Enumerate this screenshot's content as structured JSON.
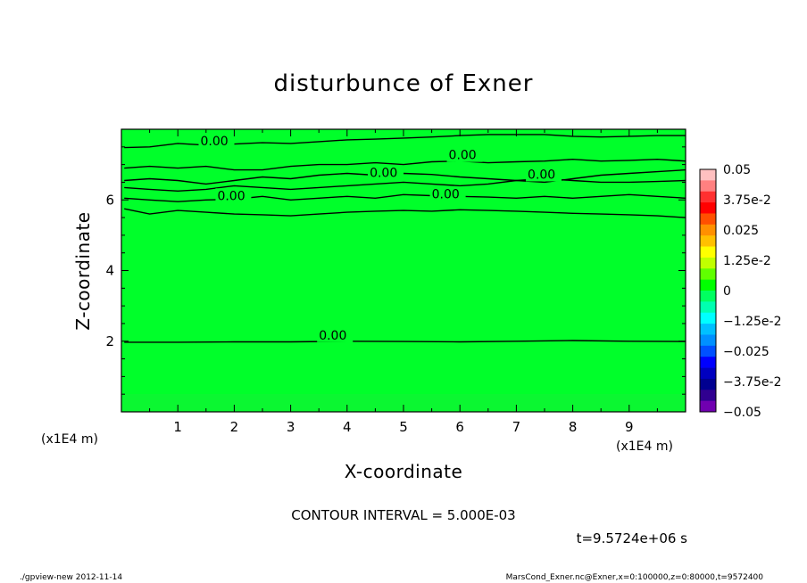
{
  "chart_data": {
    "type": "heatmap",
    "title": "disturbunce of Exner",
    "xlabel": "X-coordinate",
    "ylabel": "Z-coordinate",
    "x_unit": "(x1E4 m)",
    "y_unit": "(x1E4 m)",
    "xlim": [
      0,
      10
    ],
    "ylim": [
      0,
      8
    ],
    "x_ticks": [
      1,
      2,
      3,
      4,
      5,
      6,
      7,
      8,
      9
    ],
    "y_ticks": [
      2,
      4,
      6
    ],
    "field_value": 0,
    "field_color": "#00ff2a",
    "contour_interval_text": "CONTOUR INTERVAL = 5.000E-03",
    "time_text": "t=9.5724e+06 s",
    "contours": [
      {
        "label": "0.00",
        "label_at": [
          1.4,
          7.55
        ],
        "points": [
          [
            0.05,
            7.48
          ],
          [
            0.5,
            7.5
          ],
          [
            1.0,
            7.6
          ],
          [
            1.5,
            7.55
          ],
          [
            2.0,
            7.58
          ],
          [
            2.5,
            7.62
          ],
          [
            3.0,
            7.6
          ],
          [
            3.5,
            7.65
          ],
          [
            4.0,
            7.7
          ],
          [
            4.5,
            7.72
          ],
          [
            5.0,
            7.75
          ],
          [
            5.5,
            7.78
          ],
          [
            6.0,
            7.82
          ],
          [
            6.5,
            7.85
          ],
          [
            7.0,
            7.85
          ],
          [
            7.5,
            7.85
          ],
          [
            8.0,
            7.8
          ],
          [
            8.5,
            7.78
          ],
          [
            9.0,
            7.8
          ],
          [
            9.5,
            7.82
          ],
          [
            10.0,
            7.82
          ]
        ]
      },
      {
        "label": "0.00",
        "label_at": [
          5.8,
          7.15
        ],
        "points": [
          [
            0.05,
            6.9
          ],
          [
            0.5,
            6.95
          ],
          [
            1.0,
            6.9
          ],
          [
            1.5,
            6.95
          ],
          [
            2.0,
            6.85
          ],
          [
            2.5,
            6.85
          ],
          [
            3.0,
            6.95
          ],
          [
            3.5,
            7.0
          ],
          [
            4.0,
            7.0
          ],
          [
            4.5,
            7.05
          ],
          [
            5.0,
            7.0
          ],
          [
            5.5,
            7.08
          ],
          [
            6.0,
            7.1
          ],
          [
            6.5,
            7.05
          ],
          [
            7.0,
            7.08
          ],
          [
            7.5,
            7.1
          ],
          [
            8.0,
            7.15
          ],
          [
            8.5,
            7.1
          ],
          [
            9.0,
            7.12
          ],
          [
            9.5,
            7.15
          ],
          [
            10.0,
            7.1
          ]
        ]
      },
      {
        "label": "0.00",
        "label_at": [
          4.4,
          6.65
        ],
        "points": [
          [
            0.05,
            6.55
          ],
          [
            0.5,
            6.6
          ],
          [
            1.0,
            6.55
          ],
          [
            1.5,
            6.45
          ],
          [
            2.0,
            6.55
          ],
          [
            2.5,
            6.65
          ],
          [
            3.0,
            6.6
          ],
          [
            3.5,
            6.7
          ],
          [
            4.0,
            6.75
          ],
          [
            4.5,
            6.7
          ],
          [
            5.0,
            6.75
          ],
          [
            5.5,
            6.72
          ],
          [
            6.0,
            6.65
          ],
          [
            6.5,
            6.6
          ],
          [
            7.0,
            6.55
          ],
          [
            7.5,
            6.5
          ],
          [
            8.0,
            6.6
          ],
          [
            8.5,
            6.7
          ],
          [
            9.0,
            6.75
          ],
          [
            9.5,
            6.8
          ],
          [
            10.0,
            6.85
          ]
        ]
      },
      {
        "label": "0.00",
        "label_at": [
          7.2,
          6.6
        ],
        "points": [
          [
            0.05,
            6.35
          ],
          [
            0.5,
            6.3
          ],
          [
            1.0,
            6.25
          ],
          [
            1.5,
            6.3
          ],
          [
            2.0,
            6.4
          ],
          [
            2.5,
            6.35
          ],
          [
            3.0,
            6.3
          ],
          [
            3.5,
            6.35
          ],
          [
            4.0,
            6.4
          ],
          [
            4.5,
            6.45
          ],
          [
            5.0,
            6.5
          ],
          [
            5.5,
            6.45
          ],
          [
            6.0,
            6.4
          ],
          [
            6.5,
            6.45
          ],
          [
            7.0,
            6.55
          ],
          [
            7.5,
            6.6
          ],
          [
            8.0,
            6.55
          ],
          [
            8.5,
            6.5
          ],
          [
            9.0,
            6.5
          ],
          [
            9.5,
            6.52
          ],
          [
            10.0,
            6.55
          ]
        ]
      },
      {
        "label": "0.00",
        "label_at": [
          1.7,
          6.0
        ],
        "points": [
          [
            0.05,
            6.05
          ],
          [
            0.5,
            6.0
          ],
          [
            1.0,
            5.95
          ],
          [
            1.5,
            6.0
          ],
          [
            2.0,
            6.02
          ],
          [
            2.5,
            6.1
          ],
          [
            3.0,
            6.0
          ],
          [
            3.5,
            6.05
          ],
          [
            4.0,
            6.1
          ],
          [
            4.5,
            6.05
          ],
          [
            5.0,
            6.15
          ],
          [
            5.5,
            6.12
          ],
          [
            6.0,
            6.1
          ],
          [
            6.5,
            6.08
          ],
          [
            7.0,
            6.05
          ],
          [
            7.5,
            6.1
          ],
          [
            8.0,
            6.05
          ],
          [
            8.5,
            6.1
          ],
          [
            9.0,
            6.15
          ],
          [
            9.5,
            6.1
          ],
          [
            10.0,
            6.05
          ]
        ]
      },
      {
        "label": "0.00",
        "label_at": [
          5.5,
          6.05
        ],
        "points": [
          [
            0.05,
            5.75
          ],
          [
            0.5,
            5.6
          ],
          [
            1.0,
            5.7
          ],
          [
            1.5,
            5.65
          ],
          [
            2.0,
            5.6
          ],
          [
            2.5,
            5.58
          ],
          [
            3.0,
            5.55
          ],
          [
            3.5,
            5.6
          ],
          [
            4.0,
            5.65
          ],
          [
            4.5,
            5.68
          ],
          [
            5.0,
            5.7
          ],
          [
            5.5,
            5.68
          ],
          [
            6.0,
            5.72
          ],
          [
            6.5,
            5.7
          ],
          [
            7.0,
            5.68
          ],
          [
            7.5,
            5.65
          ],
          [
            8.0,
            5.62
          ],
          [
            8.5,
            5.6
          ],
          [
            9.0,
            5.58
          ],
          [
            9.5,
            5.55
          ],
          [
            10.0,
            5.5
          ]
        ]
      },
      {
        "label": "0.00",
        "label_at": [
          3.5,
          2.05
        ],
        "points": [
          [
            0.05,
            1.97
          ],
          [
            1.0,
            1.97
          ],
          [
            2.0,
            1.98
          ],
          [
            3.0,
            1.98
          ],
          [
            4.0,
            2.0
          ],
          [
            5.0,
            1.99
          ],
          [
            6.0,
            1.98
          ],
          [
            7.0,
            2.0
          ],
          [
            8.0,
            2.02
          ],
          [
            9.0,
            2.0
          ],
          [
            10.0,
            1.99
          ]
        ]
      }
    ],
    "colorbar": {
      "min": -0.05,
      "max": 0.05,
      "labels": [
        "0.05",
        "3.75e-2",
        "0.025",
        "1.25e-2",
        "0",
        "−1.25e-2",
        "−0.025",
        "−3.75e-2",
        "−0.05"
      ],
      "colors": [
        "#ffc0c0",
        "#ff8080",
        "#ff3030",
        "#ff0000",
        "#ff5000",
        "#ff9000",
        "#ffc000",
        "#ffff00",
        "#c0ff00",
        "#60ff00",
        "#00ff00",
        "#00ff60",
        "#00ffb0",
        "#00ffff",
        "#00c0ff",
        "#0090ff",
        "#0050ff",
        "#0000ff",
        "#0000c0",
        "#000090",
        "#300090",
        "#7000b0"
      ]
    }
  },
  "footer": {
    "left": "./gpview-new   2012-11-14",
    "right": "MarsCond_Exner.nc@Exner,x=0:100000,z=0:80000,t=9572400"
  }
}
